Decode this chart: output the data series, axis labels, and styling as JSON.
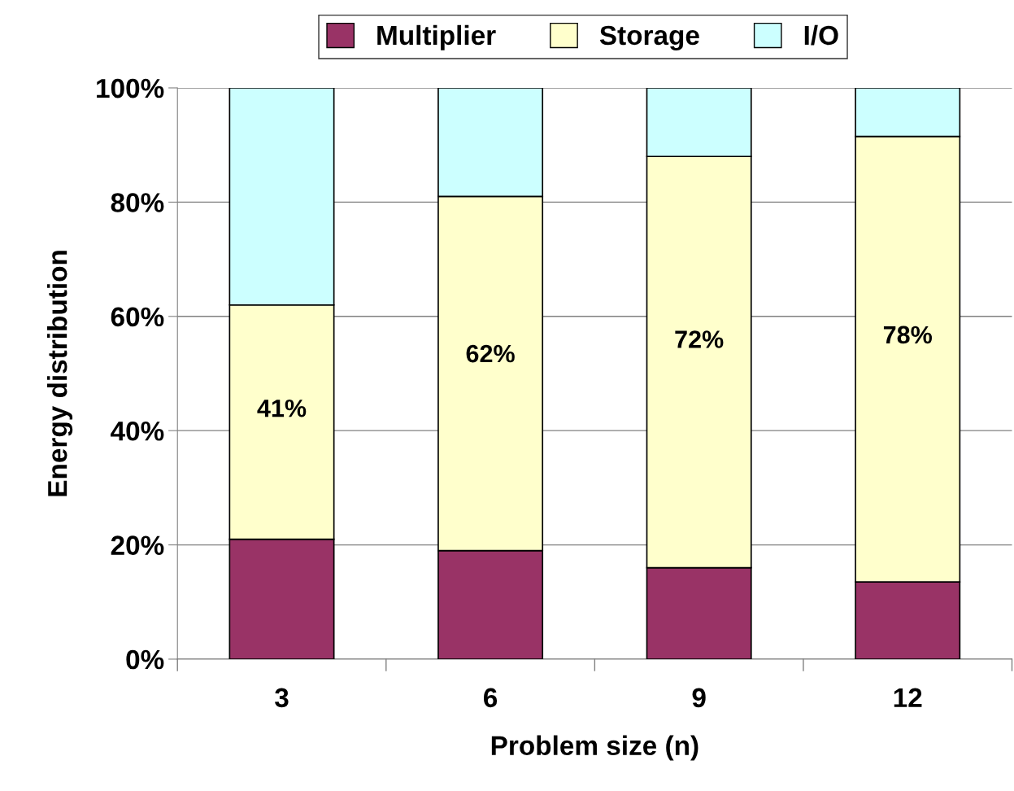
{
  "chart_data": {
    "type": "bar",
    "stacked": true,
    "categories": [
      "3",
      "6",
      "9",
      "12"
    ],
    "xlabel": "Problem size (n)",
    "ylabel": "Energy distribution",
    "ylim": [
      0,
      100
    ],
    "yticks": [
      {
        "value": 0,
        "label": "0%"
      },
      {
        "value": 20,
        "label": "20%"
      },
      {
        "value": 40,
        "label": "40%"
      },
      {
        "value": 60,
        "label": "60%"
      },
      {
        "value": 80,
        "label": "80%"
      },
      {
        "value": 100,
        "label": "100%"
      }
    ],
    "grid": "y",
    "legend": "top",
    "series": [
      {
        "name": "Multiplier",
        "color": "#993366",
        "values": [
          21,
          19,
          16,
          13.5
        ]
      },
      {
        "name": "Storage",
        "color": "#ffffcc",
        "values": [
          41,
          62,
          72,
          78
        ],
        "value_labels": [
          "41%",
          "62%",
          "72%",
          "78%"
        ]
      },
      {
        "name": "I/O",
        "color": "#ccffff",
        "values": [
          38,
          19,
          12,
          8.5
        ]
      }
    ]
  }
}
